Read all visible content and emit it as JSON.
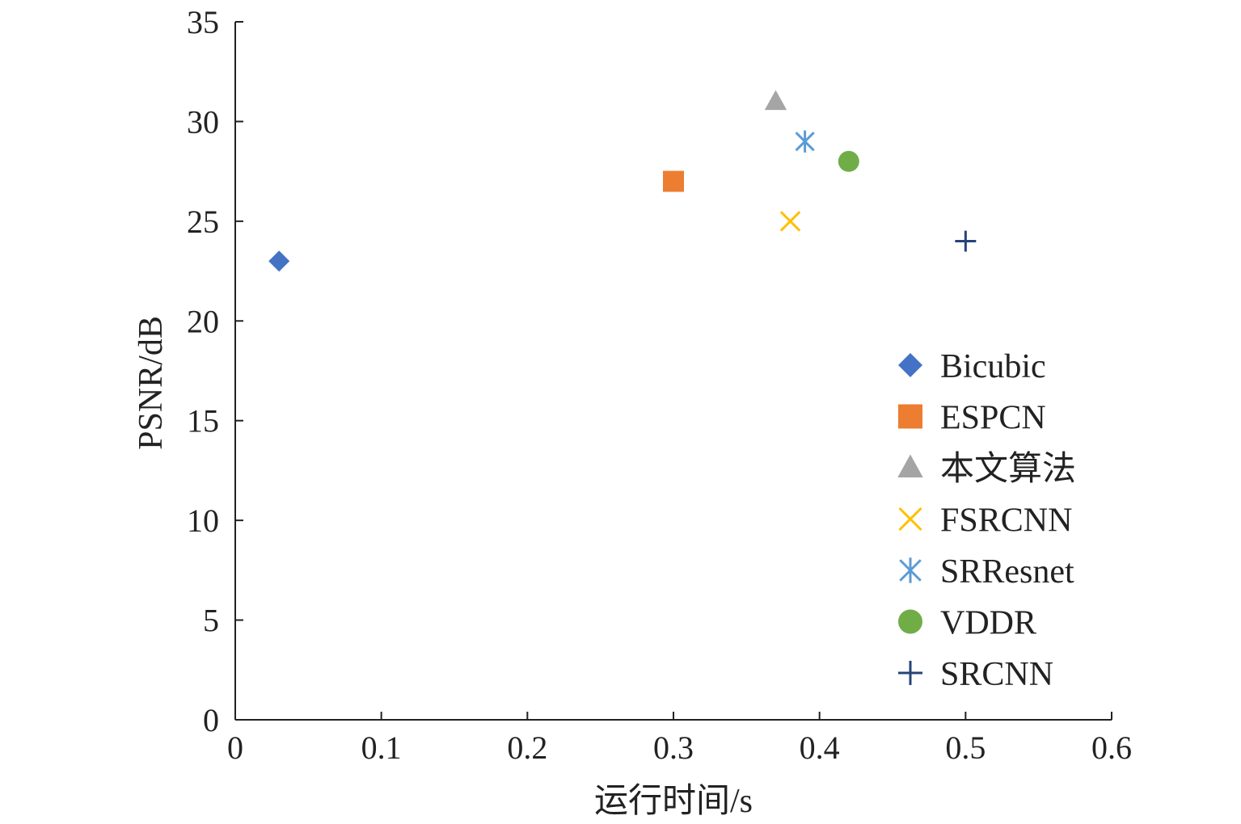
{
  "chart_data": {
    "type": "scatter",
    "title": "",
    "xlabel": "运行时间/s",
    "ylabel": "PSNR/dB",
    "xlim": [
      0,
      0.6
    ],
    "ylim": [
      0,
      35
    ],
    "x_ticks": [
      "0",
      "0.1",
      "0.2",
      "0.3",
      "0.4",
      "0.5",
      "0.6"
    ],
    "y_ticks": [
      "0",
      "5",
      "10",
      "15",
      "20",
      "25",
      "30",
      "35"
    ],
    "grid": false,
    "legend_position": "right",
    "series": [
      {
        "name": "Bicubic",
        "marker": "diamond",
        "color": "#4472C4",
        "x": 0.03,
        "y": 23
      },
      {
        "name": "ESPCN",
        "marker": "square",
        "color": "#ED7D31",
        "x": 0.3,
        "y": 27
      },
      {
        "name": "本文算法",
        "marker": "triangle",
        "color": "#A5A5A5",
        "x": 0.37,
        "y": 31
      },
      {
        "name": "FSRCNN",
        "marker": "x",
        "color": "#FFC000",
        "x": 0.38,
        "y": 25
      },
      {
        "name": "SRResnet",
        "marker": "star",
        "color": "#5B9BD5",
        "x": 0.39,
        "y": 29
      },
      {
        "name": "VDDR",
        "marker": "circle",
        "color": "#70AD47",
        "x": 0.42,
        "y": 28
      },
      {
        "name": "SRCNN",
        "marker": "plus",
        "color": "#264478",
        "x": 0.5,
        "y": 24
      }
    ]
  }
}
